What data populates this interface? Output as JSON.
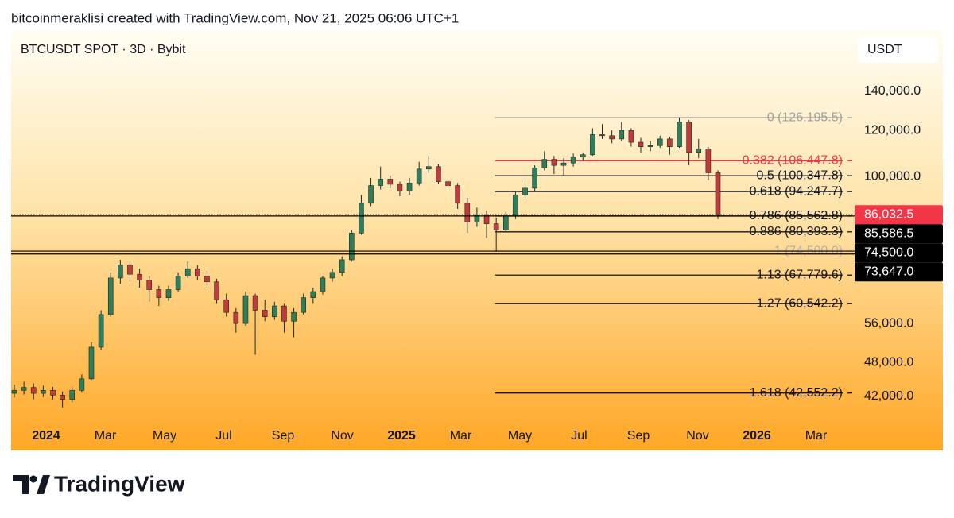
{
  "header": {
    "credit": "bitcoinmeraklisi created with TradingView.com, Nov 21, 2025 06:06 UTC+1"
  },
  "footer": {
    "brand": "TradingView"
  },
  "chart_data": {
    "type": "candlestick",
    "title": "BTCUSDT SPOT · 3D · Bybit",
    "currency": "USDT",
    "log_scale": true,
    "up_color": "#2e7d5b",
    "down_color": "#c23b3b",
    "ylim": [
      34130,
      178200
    ],
    "yticks": [
      {
        "value": 140000,
        "label": "140,000.0"
      },
      {
        "value": 120000,
        "label": "120,000.0"
      },
      {
        "value": 100000,
        "label": "100,000.0"
      },
      {
        "value": 56000,
        "label": "56,000.0"
      },
      {
        "value": 48000,
        "label": "48,000.0"
      },
      {
        "value": 42000,
        "label": "42,000.0"
      }
    ],
    "xticks": [
      "2024",
      "Mar",
      "May",
      "Jul",
      "Sep",
      "Nov",
      "2025",
      "Mar",
      "May",
      "Jul",
      "Sep",
      "Nov",
      "2026",
      "Mar"
    ],
    "ohlc": [
      [
        42500,
        44000,
        41800,
        43000
      ],
      [
        43000,
        44500,
        42300,
        43500
      ],
      [
        43500,
        44200,
        41500,
        42500
      ],
      [
        42500,
        43800,
        41900,
        43000
      ],
      [
        43000,
        43600,
        41500,
        42200
      ],
      [
        42200,
        42800,
        40200,
        41500
      ],
      [
        41500,
        43500,
        41000,
        43000
      ],
      [
        43000,
        45800,
        42600,
        45000
      ],
      [
        45000,
        52000,
        44800,
        51000
      ],
      [
        51000,
        59000,
        50500,
        58000
      ],
      [
        58000,
        68500,
        57500,
        67000
      ],
      [
        67000,
        72000,
        65500,
        70500
      ],
      [
        70500,
        71500,
        66000,
        68000
      ],
      [
        68000,
        69500,
        64500,
        66500
      ],
      [
        66500,
        67500,
        61000,
        64000
      ],
      [
        64000,
        65000,
        60000,
        62000
      ],
      [
        62000,
        65000,
        61200,
        64000
      ],
      [
        64000,
        68500,
        63500,
        67500
      ],
      [
        67500,
        71500,
        67000,
        69500
      ],
      [
        69500,
        70500,
        66500,
        67500
      ],
      [
        67500,
        69000,
        64500,
        66000
      ],
      [
        66000,
        66800,
        60500,
        61500
      ],
      [
        61500,
        63000,
        57500,
        58500
      ],
      [
        58500,
        59500,
        54000,
        56000
      ],
      [
        56000,
        63500,
        55500,
        62500
      ],
      [
        62500,
        63000,
        49500,
        59000
      ],
      [
        59000,
        61500,
        56500,
        57500
      ],
      [
        57500,
        61000,
        56800,
        60000
      ],
      [
        60000,
        60500,
        54000,
        56500
      ],
      [
        56500,
        59500,
        53000,
        58500
      ],
      [
        58500,
        63000,
        58000,
        62000
      ],
      [
        62000,
        64500,
        60500,
        63500
      ],
      [
        63500,
        67500,
        62800,
        67000
      ],
      [
        67000,
        69500,
        66000,
        68500
      ],
      [
        68500,
        73000,
        67500,
        72000
      ],
      [
        72000,
        81000,
        71500,
        80000
      ],
      [
        80000,
        93000,
        79500,
        90000
      ],
      [
        90000,
        99500,
        89000,
        96500
      ],
      [
        96500,
        104000,
        95000,
        99000
      ],
      [
        99000,
        100500,
        95500,
        97000
      ],
      [
        97000,
        98000,
        92500,
        94500
      ],
      [
        94500,
        99500,
        93000,
        97500
      ],
      [
        97500,
        106000,
        96500,
        103000
      ],
      [
        103000,
        108500,
        101500,
        104000
      ],
      [
        104000,
        105000,
        97000,
        98000
      ],
      [
        98000,
        99000,
        95000,
        96500
      ],
      [
        96500,
        97500,
        88000,
        90000
      ],
      [
        90000,
        92000,
        80000,
        83500
      ],
      [
        83500,
        88500,
        82000,
        86000
      ],
      [
        86000,
        87500,
        78500,
        83000
      ],
      [
        83000,
        85000,
        74500,
        81000
      ],
      [
        81000,
        87000,
        80500,
        85500
      ],
      [
        85500,
        94000,
        84500,
        93000
      ],
      [
        93000,
        97500,
        92000,
        95500
      ],
      [
        95500,
        104500,
        94500,
        103500
      ],
      [
        103500,
        110500,
        102500,
        107000
      ],
      [
        107000,
        108500,
        101000,
        104500
      ],
      [
        104500,
        107500,
        100500,
        105500
      ],
      [
        105500,
        109500,
        104000,
        108000
      ],
      [
        108000,
        110000,
        106500,
        109000
      ],
      [
        109000,
        121000,
        108500,
        118000
      ],
      [
        118000,
        123000,
        116000,
        117500
      ],
      [
        117500,
        120000,
        114000,
        116000
      ],
      [
        116000,
        124000,
        115000,
        120000
      ],
      [
        120000,
        121000,
        112500,
        114500
      ],
      [
        114500,
        116500,
        110000,
        112500
      ],
      [
        112500,
        115000,
        110500,
        113000
      ],
      [
        113000,
        117500,
        112000,
        116000
      ],
      [
        116000,
        117000,
        109000,
        112500
      ],
      [
        112500,
        126195.5,
        112000,
        124000
      ],
      [
        124000,
        125000,
        104500,
        110000
      ],
      [
        110000,
        116000,
        107500,
        111500
      ],
      [
        111500,
        112500,
        98500,
        101500
      ],
      [
        101500,
        102500,
        84500,
        86032.5
      ]
    ],
    "fib_levels": [
      {
        "value": 126195.5,
        "label": "0 (126,195.5)",
        "color": "#9e9e9e"
      },
      {
        "value": 106447.8,
        "label": "0.382 (106,447.8)",
        "color": "#f23645"
      },
      {
        "value": 100347.8,
        "label": "0.5 (100,347.8)",
        "color": "#131722"
      },
      {
        "value": 94247.7,
        "label": "0.618 (94,247.7)",
        "color": "#131722"
      },
      {
        "value": 85562.8,
        "label": "0.786 (85,562.8)",
        "color": "#131722"
      },
      {
        "value": 80393.3,
        "label": "0.886 (80,393.3)",
        "color": "#131722"
      },
      {
        "value": 74500.0,
        "label": "1 (74,500.0)",
        "color": "#b0b0b0"
      },
      {
        "value": 67779.6,
        "label": "1.13 (67,779.6)",
        "color": "#131722"
      },
      {
        "value": 60542.2,
        "label": "1.27 (60,542.2)",
        "color": "#131722"
      },
      {
        "value": 42552.2,
        "label": "1.618 (42,552.2)",
        "color": "#131722"
      }
    ],
    "price_lines": [
      {
        "value": 86032.5,
        "label": "86,032.5",
        "color": "#f23645",
        "style": "dotted"
      },
      {
        "value": 85586.5,
        "label": "85,586.5",
        "color": "#000000",
        "style": "solid"
      },
      {
        "value": 74500,
        "label": "74,500.0",
        "color": "#000000",
        "style": "solid"
      },
      {
        "value": 73647,
        "label": "73,647.0",
        "color": "#000000",
        "style": "solid"
      }
    ]
  }
}
